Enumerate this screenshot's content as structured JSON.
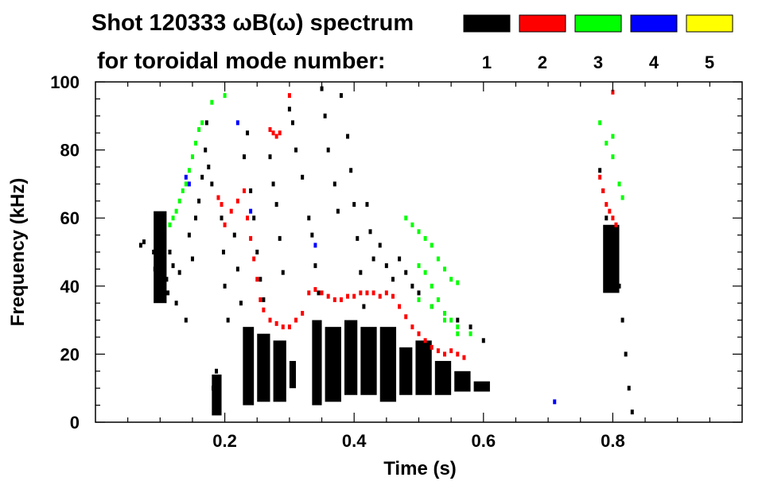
{
  "chart_data": {
    "type": "heatmap",
    "title_line1": "Shot 120333 ωB(ω) spectrum",
    "title_line2": "for toroidal mode number:",
    "xlabel": "Time (s)",
    "ylabel": "Frequency (kHz)",
    "xlim": [
      0.0,
      1.0
    ],
    "ylim": [
      0,
      100
    ],
    "x_ticks": [
      "0.2",
      "0.4",
      "0.6",
      "0.8"
    ],
    "x_tick_values": [
      0.2,
      0.4,
      0.6,
      0.8
    ],
    "y_ticks": [
      "0",
      "20",
      "40",
      "60",
      "80",
      "100"
    ],
    "y_tick_values": [
      0,
      20,
      40,
      60,
      80,
      100
    ],
    "legend": [
      {
        "label": "1",
        "color": "#000000"
      },
      {
        "label": "2",
        "color": "#ff0000"
      },
      {
        "label": "3",
        "color": "#00ff00"
      },
      {
        "label": "4",
        "color": "#0000ff"
      },
      {
        "label": "5",
        "color": "#ffff00"
      }
    ],
    "series": [
      {
        "name": "1",
        "color": "#000000",
        "points": [
          [
            0.07,
            52
          ],
          [
            0.075,
            53
          ],
          [
            0.09,
            50
          ],
          [
            0.092,
            45
          ],
          [
            0.095,
            40
          ],
          [
            0.098,
            60
          ],
          [
            0.1,
            55
          ],
          [
            0.105,
            48
          ],
          [
            0.11,
            42
          ],
          [
            0.112,
            38
          ],
          [
            0.115,
            50
          ],
          [
            0.12,
            46
          ],
          [
            0.125,
            35
          ],
          [
            0.13,
            44
          ],
          [
            0.14,
            30
          ],
          [
            0.145,
            55
          ],
          [
            0.15,
            48
          ],
          [
            0.155,
            60
          ],
          [
            0.16,
            65
          ],
          [
            0.165,
            72
          ],
          [
            0.17,
            80
          ],
          [
            0.172,
            88
          ],
          [
            0.175,
            75
          ],
          [
            0.18,
            70
          ],
          [
            0.182,
            10
          ],
          [
            0.185,
            5
          ],
          [
            0.187,
            15
          ],
          [
            0.19,
            3
          ],
          [
            0.195,
            60
          ],
          [
            0.198,
            50
          ],
          [
            0.2,
            40
          ],
          [
            0.205,
            30
          ],
          [
            0.215,
            55
          ],
          [
            0.22,
            45
          ],
          [
            0.225,
            35
          ],
          [
            0.23,
            78
          ],
          [
            0.235,
            85
          ],
          [
            0.24,
            68
          ],
          [
            0.245,
            60
          ],
          [
            0.25,
            50
          ],
          [
            0.255,
            42
          ],
          [
            0.26,
            36
          ],
          [
            0.27,
            78
          ],
          [
            0.275,
            70
          ],
          [
            0.28,
            64
          ],
          [
            0.285,
            54
          ],
          [
            0.29,
            44
          ],
          [
            0.3,
            92
          ],
          [
            0.305,
            88
          ],
          [
            0.31,
            80
          ],
          [
            0.32,
            72
          ],
          [
            0.33,
            60
          ],
          [
            0.335,
            55
          ],
          [
            0.34,
            46
          ],
          [
            0.345,
            38
          ],
          [
            0.35,
            98
          ],
          [
            0.355,
            90
          ],
          [
            0.36,
            80
          ],
          [
            0.37,
            70
          ],
          [
            0.375,
            62
          ],
          [
            0.38,
            96
          ],
          [
            0.39,
            84
          ],
          [
            0.395,
            74
          ],
          [
            0.4,
            64
          ],
          [
            0.405,
            54
          ],
          [
            0.41,
            44
          ],
          [
            0.415,
            34
          ],
          [
            0.42,
            64
          ],
          [
            0.425,
            56
          ],
          [
            0.43,
            48
          ],
          [
            0.44,
            52
          ],
          [
            0.45,
            46
          ],
          [
            0.46,
            42
          ],
          [
            0.47,
            48
          ],
          [
            0.48,
            44
          ],
          [
            0.49,
            40
          ],
          [
            0.5,
            38
          ],
          [
            0.52,
            34
          ],
          [
            0.54,
            32
          ],
          [
            0.56,
            30
          ],
          [
            0.58,
            28
          ],
          [
            0.6,
            24
          ],
          [
            0.78,
            74
          ],
          [
            0.785,
            68
          ],
          [
            0.79,
            60
          ],
          [
            0.795,
            56
          ],
          [
            0.8,
            50
          ],
          [
            0.805,
            46
          ],
          [
            0.81,
            40
          ],
          [
            0.815,
            30
          ],
          [
            0.82,
            20
          ],
          [
            0.825,
            10
          ],
          [
            0.83,
            3
          ]
        ],
        "bands": [
          {
            "t0": 0.228,
            "t1": 0.245,
            "f0": 5,
            "f1": 28
          },
          {
            "t0": 0.25,
            "t1": 0.27,
            "f0": 6,
            "f1": 26
          },
          {
            "t0": 0.275,
            "t1": 0.295,
            "f0": 6,
            "f1": 24
          },
          {
            "t0": 0.3,
            "t1": 0.31,
            "f0": 10,
            "f1": 18
          },
          {
            "t0": 0.335,
            "t1": 0.35,
            "f0": 5,
            "f1": 30
          },
          {
            "t0": 0.355,
            "t1": 0.38,
            "f0": 6,
            "f1": 28
          },
          {
            "t0": 0.385,
            "t1": 0.405,
            "f0": 8,
            "f1": 30
          },
          {
            "t0": 0.41,
            "t1": 0.435,
            "f0": 8,
            "f1": 28
          },
          {
            "t0": 0.44,
            "t1": 0.465,
            "f0": 6,
            "f1": 28
          },
          {
            "t0": 0.47,
            "t1": 0.49,
            "f0": 8,
            "f1": 22
          },
          {
            "t0": 0.495,
            "t1": 0.52,
            "f0": 8,
            "f1": 24
          },
          {
            "t0": 0.525,
            "t1": 0.55,
            "f0": 8,
            "f1": 18
          },
          {
            "t0": 0.555,
            "t1": 0.58,
            "f0": 9,
            "f1": 15
          },
          {
            "t0": 0.585,
            "t1": 0.61,
            "f0": 9,
            "f1": 12
          },
          {
            "t0": 0.18,
            "t1": 0.195,
            "f0": 2,
            "f1": 14
          },
          {
            "t0": 0.09,
            "t1": 0.11,
            "f0": 35,
            "f1": 62
          },
          {
            "t0": 0.785,
            "t1": 0.81,
            "f0": 38,
            "f1": 58
          }
        ]
      },
      {
        "name": "2",
        "color": "#ff0000",
        "points": [
          [
            0.19,
            66
          ],
          [
            0.195,
            64
          ],
          [
            0.2,
            58
          ],
          [
            0.21,
            62
          ],
          [
            0.22,
            65
          ],
          [
            0.23,
            68
          ],
          [
            0.235,
            60
          ],
          [
            0.24,
            54
          ],
          [
            0.245,
            48
          ],
          [
            0.25,
            42
          ],
          [
            0.255,
            36
          ],
          [
            0.26,
            33
          ],
          [
            0.27,
            30
          ],
          [
            0.28,
            29
          ],
          [
            0.29,
            28
          ],
          [
            0.3,
            28
          ],
          [
            0.31,
            30
          ],
          [
            0.32,
            32
          ],
          [
            0.33,
            38
          ],
          [
            0.34,
            39
          ],
          [
            0.35,
            38
          ],
          [
            0.36,
            37
          ],
          [
            0.37,
            36
          ],
          [
            0.38,
            36
          ],
          [
            0.39,
            37
          ],
          [
            0.4,
            37
          ],
          [
            0.41,
            38
          ],
          [
            0.42,
            38
          ],
          [
            0.43,
            38
          ],
          [
            0.44,
            37
          ],
          [
            0.45,
            38
          ],
          [
            0.46,
            37
          ],
          [
            0.47,
            34
          ],
          [
            0.48,
            31
          ],
          [
            0.49,
            28
          ],
          [
            0.5,
            26
          ],
          [
            0.51,
            24
          ],
          [
            0.52,
            22
          ],
          [
            0.53,
            21
          ],
          [
            0.54,
            20
          ],
          [
            0.55,
            21
          ],
          [
            0.56,
            20
          ],
          [
            0.57,
            19
          ],
          [
            0.27,
            86
          ],
          [
            0.275,
            85
          ],
          [
            0.28,
            84
          ],
          [
            0.285,
            85
          ],
          [
            0.3,
            96
          ],
          [
            0.78,
            72
          ],
          [
            0.785,
            68
          ],
          [
            0.79,
            64
          ],
          [
            0.795,
            62
          ],
          [
            0.8,
            60
          ],
          [
            0.805,
            58
          ],
          [
            0.8,
            97
          ]
        ]
      },
      {
        "name": "3",
        "color": "#00ff00",
        "points": [
          [
            0.115,
            58
          ],
          [
            0.12,
            60
          ],
          [
            0.125,
            62
          ],
          [
            0.13,
            65
          ],
          [
            0.135,
            68
          ],
          [
            0.14,
            70
          ],
          [
            0.145,
            74
          ],
          [
            0.15,
            78
          ],
          [
            0.155,
            82
          ],
          [
            0.16,
            86
          ],
          [
            0.165,
            88
          ],
          [
            0.18,
            94
          ],
          [
            0.2,
            96
          ],
          [
            0.48,
            60
          ],
          [
            0.49,
            58
          ],
          [
            0.5,
            56
          ],
          [
            0.51,
            54
          ],
          [
            0.52,
            52
          ],
          [
            0.53,
            48
          ],
          [
            0.54,
            45
          ],
          [
            0.55,
            42
          ],
          [
            0.56,
            41
          ],
          [
            0.5,
            46
          ],
          [
            0.51,
            44
          ],
          [
            0.52,
            40
          ],
          [
            0.53,
            36
          ],
          [
            0.54,
            32
          ],
          [
            0.55,
            30
          ],
          [
            0.56,
            28
          ],
          [
            0.58,
            26
          ],
          [
            0.5,
            36
          ],
          [
            0.52,
            34
          ],
          [
            0.54,
            30
          ],
          [
            0.56,
            26
          ],
          [
            0.78,
            88
          ],
          [
            0.79,
            82
          ],
          [
            0.8,
            78
          ],
          [
            0.81,
            70
          ],
          [
            0.815,
            66
          ],
          [
            0.8,
            84
          ]
        ]
      },
      {
        "name": "4",
        "color": "#0000ff",
        "points": [
          [
            0.14,
            72
          ],
          [
            0.145,
            70
          ],
          [
            0.22,
            88
          ],
          [
            0.24,
            62
          ],
          [
            0.34,
            52
          ],
          [
            0.71,
            6
          ]
        ]
      },
      {
        "name": "5",
        "color": "#ffff00",
        "points": []
      }
    ]
  }
}
